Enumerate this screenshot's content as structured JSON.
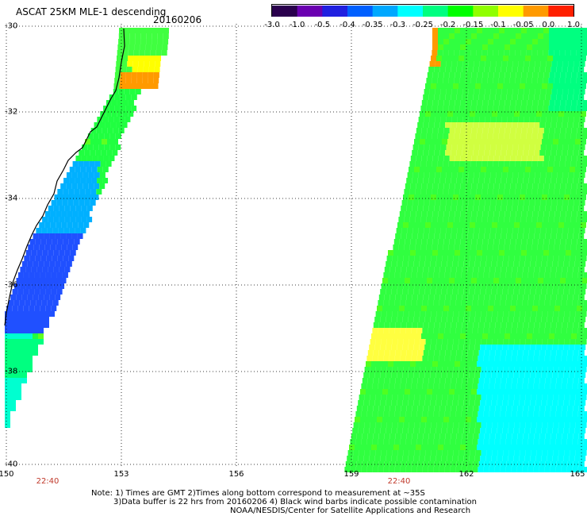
{
  "header": {
    "title": "ASCAT 25KM MLE-1 descending",
    "date": "20160206"
  },
  "colorbar": {
    "ticks": [
      "-3.0",
      "-1.0",
      "-0.5",
      "-0.4",
      "-0.35",
      "-0.3",
      "-0.25",
      "-0.2",
      "-0.15",
      "-0.1",
      "-0.05",
      "0.0",
      "1.0"
    ],
    "colors": [
      "#2a004d",
      "#6a00b0",
      "#2020e0",
      "#0060ff",
      "#00a8ff",
      "#00ffff",
      "#00ff80",
      "#00ff00",
      "#90ff00",
      "#ffff00",
      "#ff9a00",
      "#ff2000"
    ]
  },
  "axes": {
    "lat_labels": [
      "-30",
      "-32",
      "-34",
      "-36",
      "-38",
      "-40"
    ],
    "lon_labels": [
      "150",
      "153",
      "156",
      "159",
      "162",
      "165"
    ],
    "time_labels": [
      "22:40",
      "22:40"
    ]
  },
  "notes": {
    "line1": "Note: 1) Times are GMT 2)Times along bottom correspond to measurement at ~35S",
    "line2": "3)Data buffer is 22 hrs from 20160206 4) Black wind barbs indicate possible contamination",
    "line3": "NOAA/NESDIS/Center for Satellite Applications and Research"
  }
}
